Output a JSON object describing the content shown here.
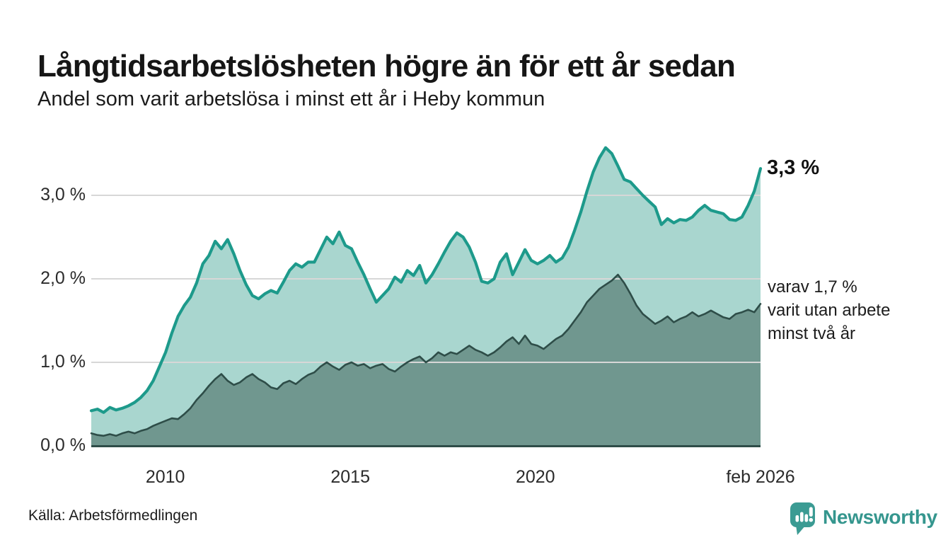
{
  "header": {
    "title": "Långtidsarbetslösheten högre än för ett år sedan",
    "subtitle": "Andel som varit arbetslösa i minst ett år i Heby kommun"
  },
  "chart_data": {
    "type": "area",
    "title": "Långtidsarbetslösheten högre än för ett år sedan",
    "subtitle": "Andel som varit arbetslösa i minst ett år i Heby kommun",
    "unit": "%",
    "x_min": 2008,
    "x_max": 2026.083,
    "ylim": [
      0,
      3.7
    ],
    "grid": "horizontal",
    "y_gridlines": [
      1,
      2,
      3
    ],
    "y_ticks": [
      {
        "v": 0,
        "label": "0,0 %"
      },
      {
        "v": 1,
        "label": "1,0 %"
      },
      {
        "v": 2,
        "label": "2,0 %"
      },
      {
        "v": 3,
        "label": "3,0 %"
      }
    ],
    "x_ticks": [
      {
        "t": 2010,
        "label": "2010"
      },
      {
        "t": 2015,
        "label": "2015"
      },
      {
        "t": 2020,
        "label": "2020"
      },
      {
        "t": 2026.083,
        "label": "feb 2026"
      }
    ],
    "series": [
      {
        "name": "Andel arbetslösa minst ett år",
        "line_color": "#1D9A8B",
        "fill_color": "#A9D6CF",
        "latest_value": 3.3,
        "values": [
          0.42,
          0.44,
          0.4,
          0.46,
          0.43,
          0.45,
          0.48,
          0.52,
          0.58,
          0.66,
          0.78,
          0.95,
          1.12,
          1.35,
          1.55,
          1.68,
          1.78,
          1.95,
          2.18,
          2.28,
          2.45,
          2.36,
          2.47,
          2.3,
          2.1,
          1.93,
          1.8,
          1.76,
          1.82,
          1.86,
          1.83,
          1.96,
          2.1,
          2.18,
          2.14,
          2.2,
          2.2,
          2.35,
          2.5,
          2.42,
          2.56,
          2.4,
          2.36,
          2.2,
          2.05,
          1.88,
          1.72,
          1.8,
          1.88,
          2.02,
          1.96,
          2.1,
          2.04,
          2.16,
          1.95,
          2.05,
          2.18,
          2.32,
          2.45,
          2.55,
          2.5,
          2.38,
          2.2,
          1.97,
          1.95,
          2.0,
          2.2,
          2.3,
          2.05,
          2.2,
          2.35,
          2.22,
          2.18,
          2.22,
          2.28,
          2.2,
          2.25,
          2.38,
          2.58,
          2.8,
          3.05,
          3.28,
          3.45,
          3.57,
          3.5,
          3.35,
          3.19,
          3.16,
          3.08,
          3.0,
          2.93,
          2.86,
          2.65,
          2.72,
          2.67,
          2.71,
          2.7,
          2.74,
          2.82,
          2.88,
          2.82,
          2.8,
          2.78,
          2.71,
          2.7,
          2.74,
          2.88,
          3.05,
          3.32
        ]
      },
      {
        "name": "Andel arbetslösa minst två år",
        "line_color": "#2E4D48",
        "fill_color": "#70978F",
        "latest_value": 1.7,
        "values": [
          0.15,
          0.13,
          0.12,
          0.14,
          0.12,
          0.15,
          0.17,
          0.15,
          0.18,
          0.2,
          0.24,
          0.27,
          0.3,
          0.33,
          0.32,
          0.38,
          0.45,
          0.55,
          0.63,
          0.72,
          0.8,
          0.86,
          0.78,
          0.73,
          0.76,
          0.82,
          0.86,
          0.8,
          0.76,
          0.7,
          0.68,
          0.75,
          0.78,
          0.74,
          0.8,
          0.85,
          0.88,
          0.95,
          1.0,
          0.95,
          0.91,
          0.97,
          1.0,
          0.96,
          0.98,
          0.93,
          0.96,
          0.98,
          0.92,
          0.89,
          0.95,
          1.0,
          1.04,
          1.07,
          1.0,
          1.05,
          1.12,
          1.08,
          1.12,
          1.1,
          1.15,
          1.2,
          1.15,
          1.12,
          1.08,
          1.12,
          1.18,
          1.25,
          1.3,
          1.22,
          1.32,
          1.22,
          1.2,
          1.16,
          1.22,
          1.28,
          1.32,
          1.4,
          1.5,
          1.6,
          1.72,
          1.8,
          1.88,
          1.93,
          1.98,
          2.05,
          1.95,
          1.82,
          1.68,
          1.58,
          1.52,
          1.46,
          1.5,
          1.55,
          1.48,
          1.52,
          1.55,
          1.6,
          1.55,
          1.58,
          1.62,
          1.58,
          1.54,
          1.52,
          1.58,
          1.6,
          1.63,
          1.6,
          1.7
        ]
      }
    ],
    "annotations": {
      "latest_total": "3,3 %",
      "two_years_lines": [
        "varav 1,7 %",
        "varit utan arbete",
        "minst två år"
      ]
    },
    "colors": {
      "accent_teal": "#1D9A8B",
      "light_fill": "#A9D6CF",
      "dark_fill": "#70978F",
      "dark_stroke": "#2E4D48",
      "gridline": "#d7d7d7",
      "logo_teal": "#3B9B93"
    }
  },
  "footer": {
    "source": "Källa: Arbetsförmedlingen",
    "logo_text": "Newsworthy"
  }
}
